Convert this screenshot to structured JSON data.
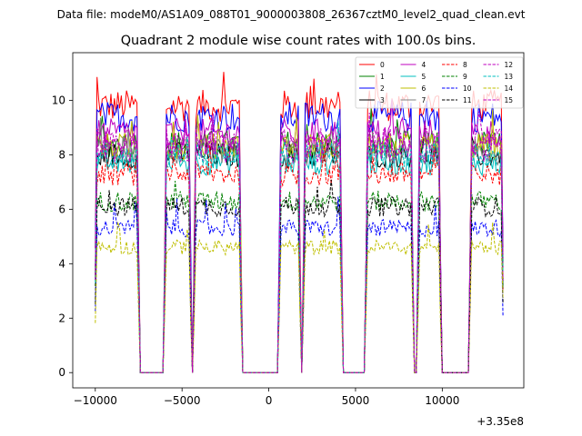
{
  "chart_data": {
    "type": "line",
    "suptitle": "Data file: modeM0/AS1A09_088T01_9000003808_26367cztM0_level2_quad_clean.evt",
    "title": "Quadrant 2 module wise count rates with 100.0s bins.",
    "xlabel": "",
    "ylabel": "",
    "x_offset_text": "+3.35e8",
    "xlim": [
      -11300,
      14700
    ],
    "ylim": [
      -0.56,
      11.75
    ],
    "x_ticks": [
      -10000,
      -5000,
      0,
      5000,
      10000
    ],
    "x_tick_labels": [
      "−10000",
      "−5000",
      "0",
      "5000",
      "10000"
    ],
    "y_ticks": [
      0,
      2,
      4,
      6,
      8,
      10
    ],
    "y_tick_labels": [
      "0",
      "2",
      "4",
      "6",
      "8",
      "10"
    ],
    "legend_position": "top-right",
    "legend_columns": 4,
    "good_time_intervals": [
      [
        -10000,
        -7500
      ],
      [
        -6000,
        -4500
      ],
      [
        -4300,
        -1600
      ],
      [
        600,
        1800
      ],
      [
        2000,
        4200
      ],
      [
        5600,
        8300
      ],
      [
        8600,
        9900
      ],
      [
        11600,
        13500
      ]
    ],
    "series": [
      {
        "name": "0",
        "color": "#ff0000",
        "dash": "solid",
        "level": 9.8
      },
      {
        "name": "1",
        "color": "#008000",
        "dash": "solid",
        "level": 8.4
      },
      {
        "name": "2",
        "color": "#0000ff",
        "dash": "solid",
        "level": 9.4
      },
      {
        "name": "3",
        "color": "#000000",
        "dash": "solid",
        "level": 8.0
      },
      {
        "name": "4",
        "color": "#bf00bf",
        "dash": "solid",
        "level": 8.8
      },
      {
        "name": "5",
        "color": "#00bfbf",
        "dash": "solid",
        "level": 7.7
      },
      {
        "name": "6",
        "color": "#bfbf00",
        "dash": "solid",
        "level": 8.3
      },
      {
        "name": "7",
        "color": "#808080",
        "dash": "solid",
        "level": 8.1
      },
      {
        "name": "8",
        "color": "#ff0000",
        "dash": "dashed",
        "level": 7.3
      },
      {
        "name": "9",
        "color": "#008000",
        "dash": "dashed",
        "level": 6.3
      },
      {
        "name": "10",
        "color": "#0000ff",
        "dash": "dashed",
        "level": 5.3
      },
      {
        "name": "11",
        "color": "#000000",
        "dash": "dashed",
        "level": 6.1
      },
      {
        "name": "12",
        "color": "#bf00bf",
        "dash": "dashed",
        "level": 8.2
      },
      {
        "name": "13",
        "color": "#00bfbf",
        "dash": "dashed",
        "level": 8.0
      },
      {
        "name": "14",
        "color": "#bfbf00",
        "dash": "dashed",
        "level": 4.6
      },
      {
        "name": "15",
        "color": "#bf00bf",
        "dash": "dashed",
        "level": 8.5
      }
    ]
  }
}
